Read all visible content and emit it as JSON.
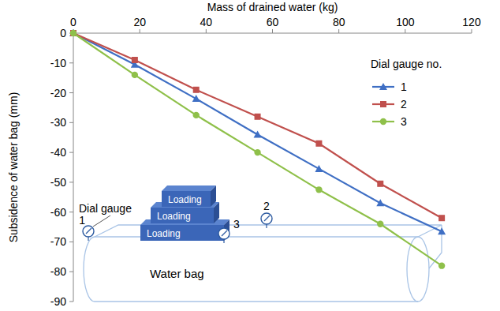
{
  "chart_data": {
    "type": "line",
    "x_label": "Mass of drained water (kg)",
    "y_label": "Subsidence of water bag (mm)",
    "legend_title": "Dial gauge no.",
    "x": [
      0,
      18.5,
      37,
      55.5,
      74,
      92.5,
      111
    ],
    "series": [
      {
        "name": "1",
        "color": "#3f6fc4",
        "marker": "triangle",
        "values": [
          0,
          -10.5,
          -22,
          -34,
          -45.5,
          -57,
          -66.5
        ]
      },
      {
        "name": "2",
        "color": "#c0504d",
        "marker": "square",
        "values": [
          0,
          -9,
          -19,
          -28,
          -37,
          -50.5,
          -62
        ]
      },
      {
        "name": "3",
        "color": "#8fc04a",
        "marker": "circle",
        "values": [
          0,
          -14,
          -27.5,
          -40,
          -52.5,
          -64,
          -78
        ]
      }
    ],
    "xlim": [
      0,
      120
    ],
    "xticks": [
      0,
      20,
      40,
      60,
      80,
      100,
      120
    ],
    "ylim": [
      -90,
      0
    ],
    "yticks": [
      0,
      -10,
      -20,
      -30,
      -40,
      -50,
      -60,
      -70,
      -80,
      -90
    ],
    "grid": false,
    "legend": "upper right",
    "annotations": [
      "Dial gauge",
      "Loading",
      "Loading",
      "Loading",
      "Water bag",
      "1",
      "2",
      "3"
    ]
  }
}
